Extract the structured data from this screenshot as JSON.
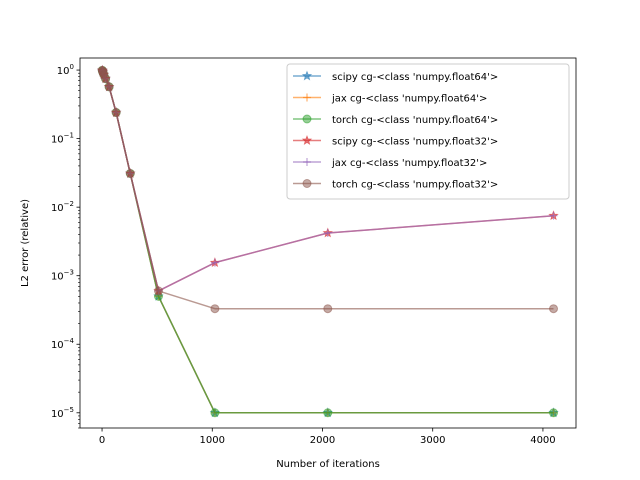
{
  "chart_data": {
    "type": "line",
    "title": "",
    "xlabel": "Number of iterations",
    "ylabel": "L2 error (relative)",
    "yscale": "log",
    "xlim": [
      -200,
      4300
    ],
    "ylim": [
      6e-06,
      1.5
    ],
    "xticks": [
      0,
      1000,
      2000,
      3000,
      4000
    ],
    "yticks": [
      {
        "value": 1,
        "base": "10",
        "exp": "0"
      },
      {
        "value": 0.1,
        "base": "10",
        "exp": "−1"
      },
      {
        "value": 0.01,
        "base": "10",
        "exp": "−2"
      },
      {
        "value": 0.001,
        "base": "10",
        "exp": "−3"
      },
      {
        "value": 0.0001,
        "base": "10",
        "exp": "−4"
      },
      {
        "value": 1e-05,
        "base": "10",
        "exp": "−5"
      }
    ],
    "legend_position": "top-right",
    "x": [
      2,
      4,
      8,
      16,
      32,
      64,
      128,
      256,
      512,
      1024,
      2048,
      4096
    ],
    "series": [
      {
        "name": "scipy cg-<class 'numpy.float64'>",
        "color": "#1f77b4",
        "marker": "star",
        "values": [
          0.99,
          0.97,
          0.93,
          0.86,
          0.75,
          0.57,
          0.24,
          0.031,
          0.0005,
          1e-05,
          1e-05,
          1e-05
        ]
      },
      {
        "name": "jax cg-<class 'numpy.float64'>",
        "color": "#ff7f0e",
        "marker": "plus",
        "values": [
          0.99,
          0.97,
          0.93,
          0.86,
          0.75,
          0.57,
          0.24,
          0.031,
          0.0005,
          1e-05,
          1e-05,
          1e-05
        ]
      },
      {
        "name": "torch cg-<class 'numpy.float64'>",
        "color": "#2ca02c",
        "marker": "circle",
        "values": [
          0.99,
          0.97,
          0.93,
          0.86,
          0.75,
          0.57,
          0.24,
          0.031,
          0.0005,
          1e-05,
          1e-05,
          1e-05
        ]
      },
      {
        "name": "scipy cg-<class 'numpy.float32'>",
        "color": "#d62728",
        "marker": "star",
        "values": [
          0.99,
          0.97,
          0.93,
          0.86,
          0.75,
          0.57,
          0.24,
          0.031,
          0.0006,
          0.00155,
          0.0042,
          0.0075
        ]
      },
      {
        "name": "jax cg-<class 'numpy.float32'>",
        "color": "#9467bd",
        "marker": "plus",
        "values": [
          0.99,
          0.97,
          0.93,
          0.86,
          0.75,
          0.57,
          0.24,
          0.031,
          0.0006,
          0.00155,
          0.0042,
          0.0075
        ]
      },
      {
        "name": "torch cg-<class 'numpy.float32'>",
        "color": "#8c564b",
        "marker": "circle",
        "values": [
          0.99,
          0.97,
          0.93,
          0.86,
          0.75,
          0.57,
          0.24,
          0.031,
          0.0006,
          0.00033,
          0.00033,
          0.00033
        ]
      }
    ]
  }
}
